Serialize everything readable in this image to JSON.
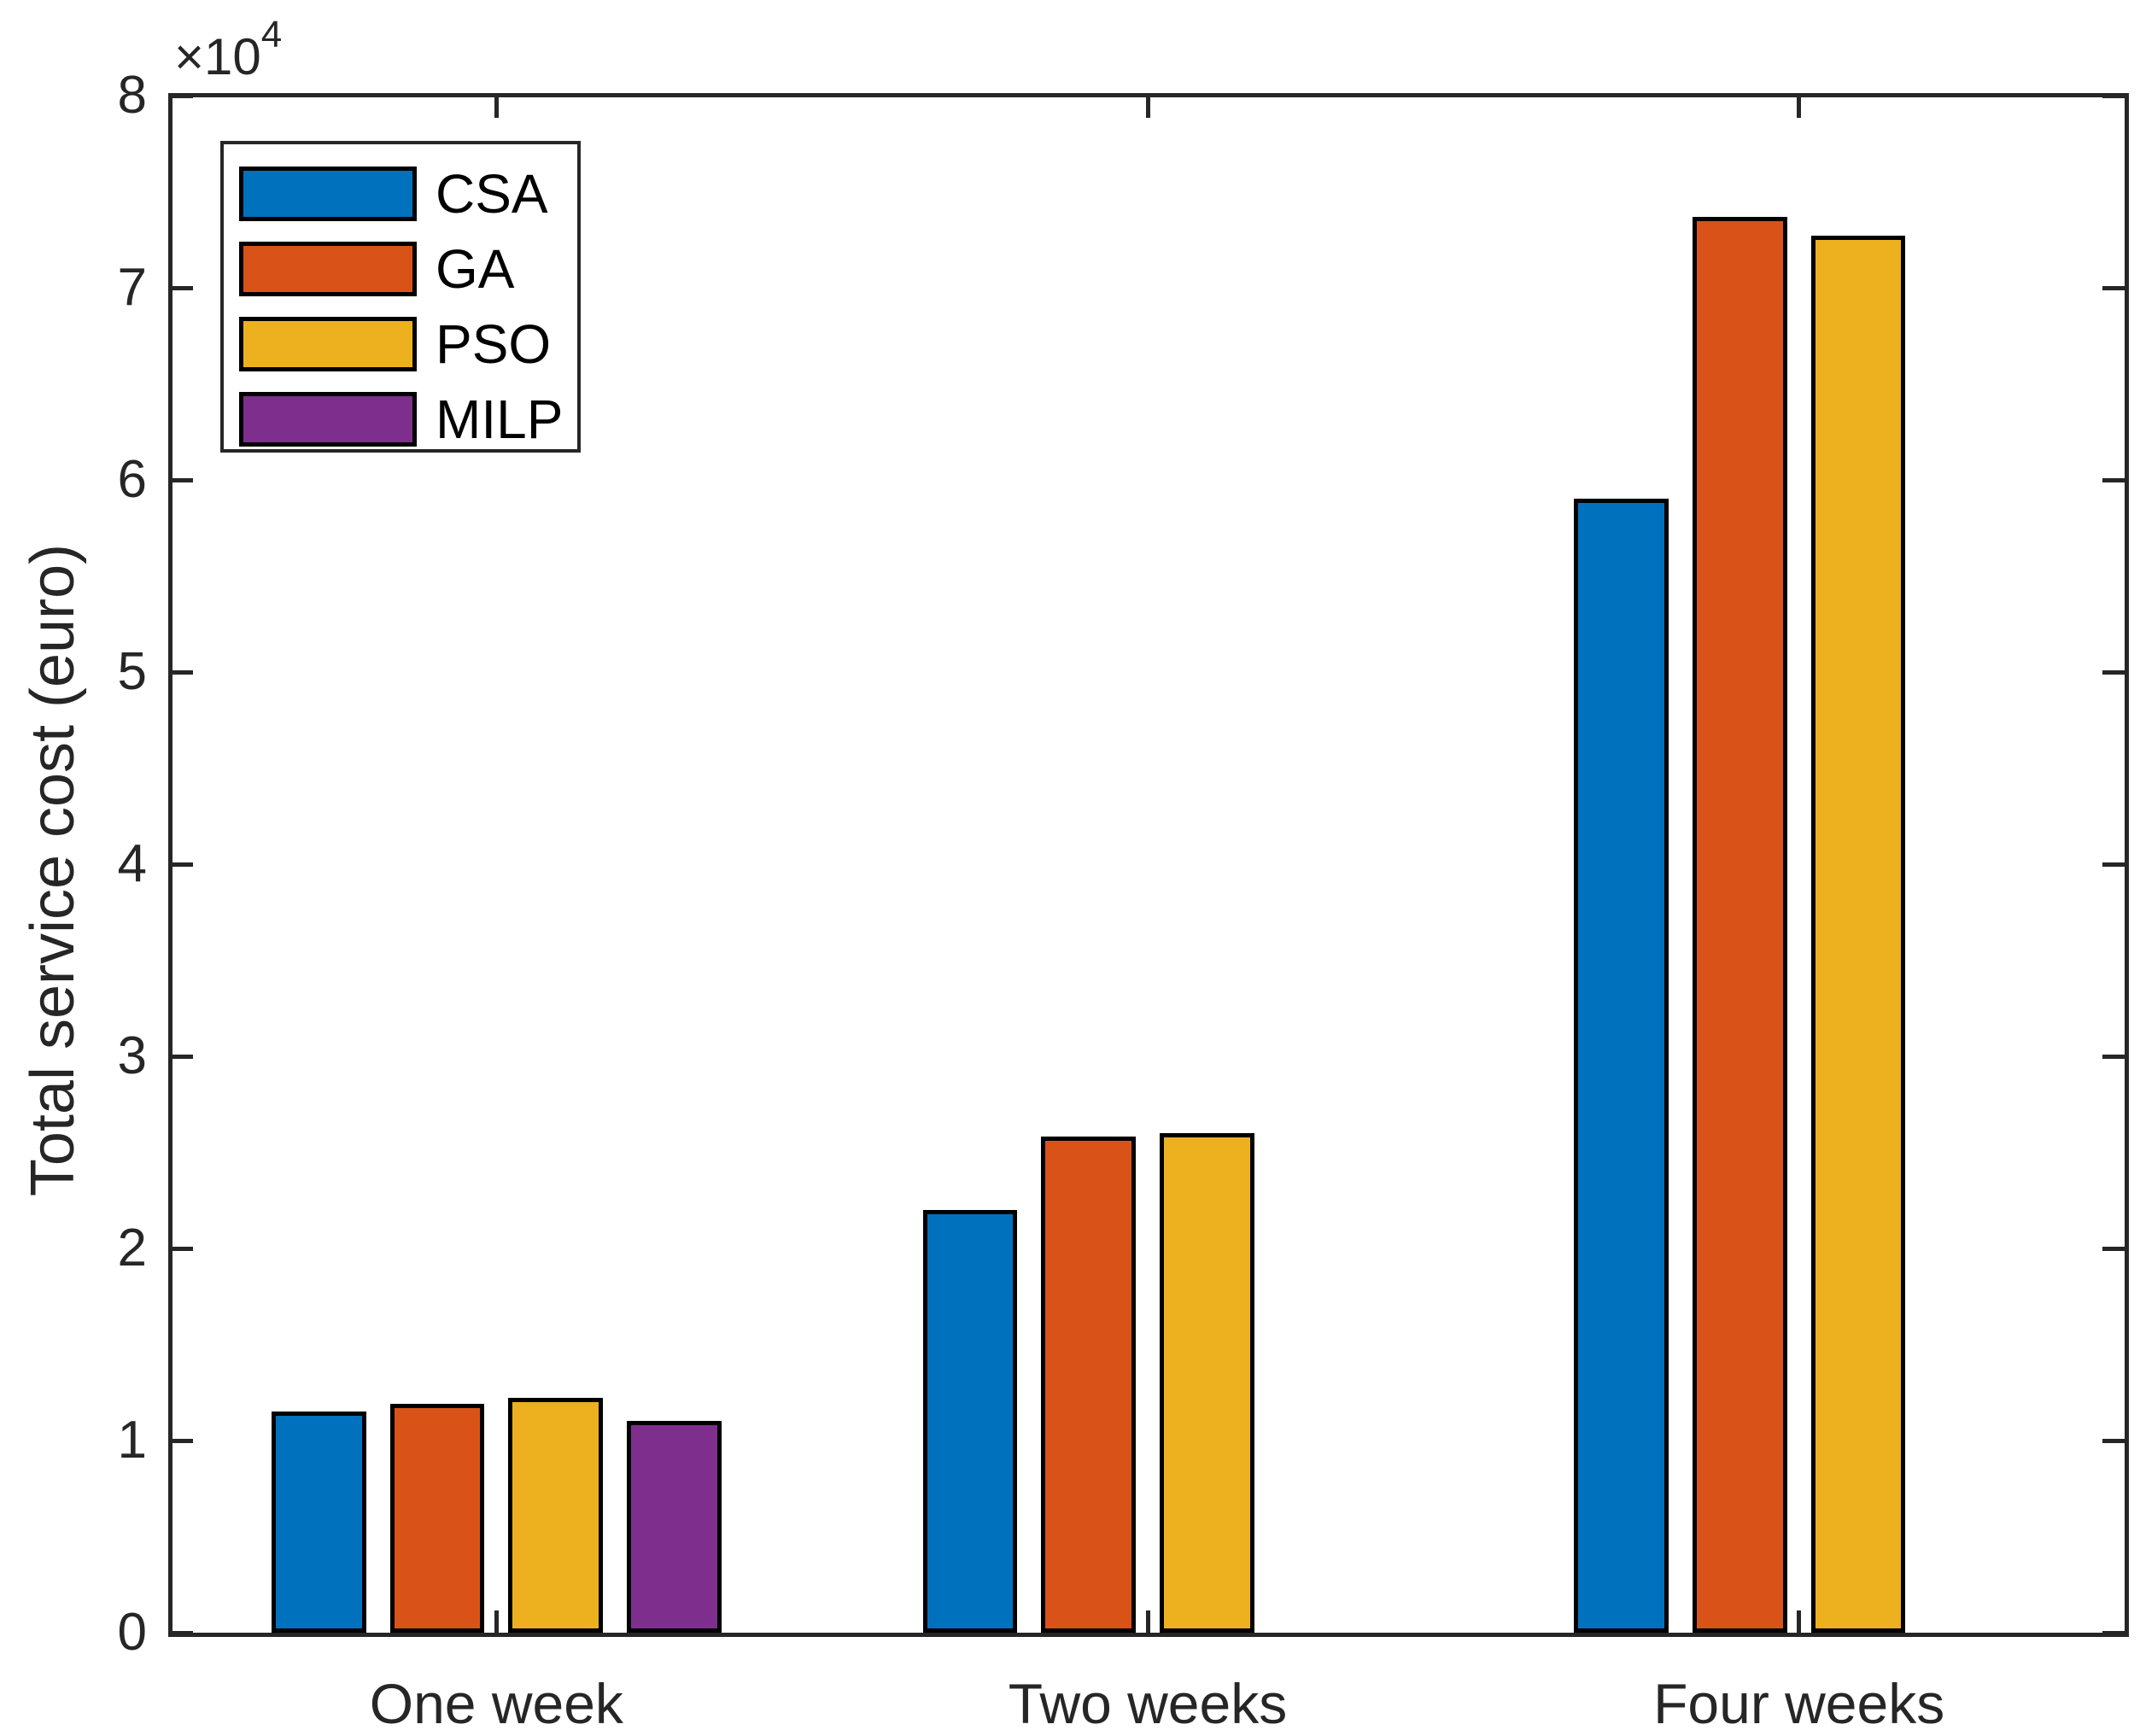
{
  "y_axis": {
    "label": "Total service cost (euro)",
    "multiplier_base": "×10",
    "multiplier_exp": "4",
    "tick_labels": [
      "0",
      "1",
      "2",
      "3",
      "4",
      "5",
      "6",
      "7",
      "8"
    ]
  },
  "x_axis": {
    "tick_labels": [
      "One week",
      "Two weeks",
      "Four weeks"
    ]
  },
  "legend": {
    "entries": [
      "CSA",
      "GA",
      "PSO",
      "MILP"
    ]
  },
  "colors": {
    "csa": "#0072BD",
    "ga": "#D95319",
    "pso": "#EDB120",
    "milp": "#7E2F8E",
    "axis": "#262626",
    "bar_edge": "#000000",
    "background": "#FFFFFF"
  },
  "chart_data": {
    "type": "bar",
    "title": "",
    "categories": [
      "One week",
      "Two weeks",
      "Four weeks"
    ],
    "series": [
      {
        "name": "CSA",
        "color": "#0072BD",
        "values_x1e4": [
          1.15,
          2.2,
          5.9
        ]
      },
      {
        "name": "GA",
        "color": "#D95319",
        "values_x1e4": [
          1.19,
          2.58,
          7.37
        ]
      },
      {
        "name": "PSO",
        "color": "#EDB120",
        "values_x1e4": [
          1.22,
          2.6,
          7.27
        ]
      },
      {
        "name": "MILP",
        "color": "#7E2F8E",
        "values_x1e4": [
          1.1,
          0,
          0
        ]
      }
    ],
    "value_unit_multiplier": 10000,
    "xlabel": "",
    "ylabel": "Total service cost (euro)",
    "ylim": [
      0,
      8
    ],
    "yticks": [
      0,
      1,
      2,
      3,
      4,
      5,
      6,
      7,
      8
    ],
    "grid": false,
    "legend_position": "top-left",
    "bars_absent_for_zero_values": [
      "MILP@Two weeks",
      "MILP@Four weeks"
    ]
  }
}
